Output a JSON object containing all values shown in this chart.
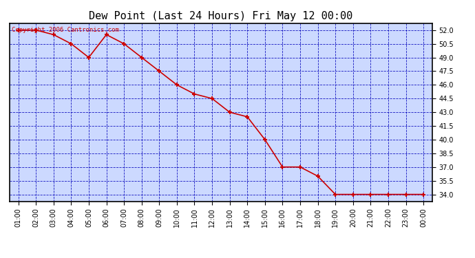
{
  "title": "Dew Point (Last 24 Hours) Fri May 12 00:00",
  "copyright": "Copyright 2006 Cantronics.com",
  "x_labels": [
    "01:00",
    "02:00",
    "03:00",
    "04:00",
    "05:00",
    "06:00",
    "07:00",
    "08:00",
    "09:00",
    "10:00",
    "11:00",
    "12:00",
    "13:00",
    "14:00",
    "15:00",
    "16:00",
    "17:00",
    "18:00",
    "19:00",
    "20:00",
    "21:00",
    "22:00",
    "23:00",
    "00:00"
  ],
  "y_values": [
    52.0,
    52.0,
    51.5,
    50.5,
    49.0,
    51.5,
    50.5,
    49.0,
    47.5,
    46.0,
    45.0,
    44.5,
    43.0,
    42.5,
    40.0,
    37.0,
    37.0,
    36.0,
    34.0,
    34.0,
    34.0,
    34.0,
    34.0,
    34.0
  ],
  "line_color": "#cc0000",
  "marker_color": "#cc0000",
  "background_color": "#ffffff",
  "plot_bg_color": "#ccd9ff",
  "grid_color": "#0000bb",
  "border_color": "#000000",
  "title_color": "#000000",
  "ylim_min": 33.25,
  "ylim_max": 52.75,
  "yticks": [
    34.0,
    35.5,
    37.0,
    38.5,
    40.0,
    41.5,
    43.0,
    44.5,
    46.0,
    47.5,
    49.0,
    50.5,
    52.0
  ],
  "title_fontsize": 11,
  "tick_fontsize": 7,
  "copyright_fontsize": 6.5
}
